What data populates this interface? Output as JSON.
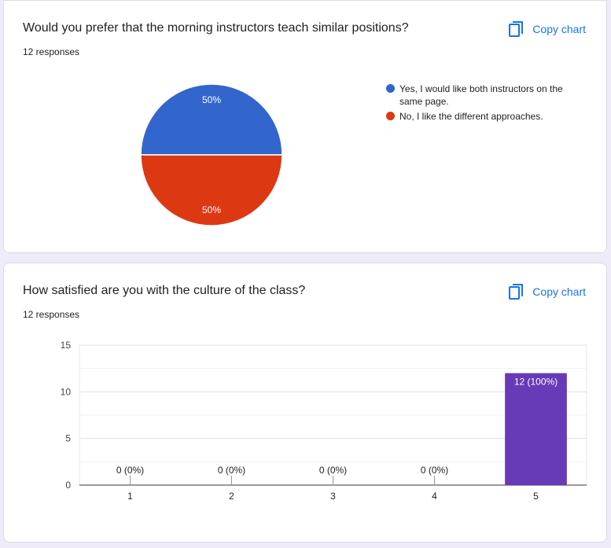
{
  "card1": {
    "title": "Would you prefer that the morning instructors teach similar positions?",
    "responses": "12 responses",
    "copy_label": "Copy chart"
  },
  "card2": {
    "title": "How satisfied are you with the culture of the class?",
    "responses": "12 responses",
    "copy_label": "Copy chart"
  },
  "chart_data": [
    {
      "type": "pie",
      "labels": [
        "Yes, I would like both instructors on the same page.",
        "No, I like the different approaches."
      ],
      "values": [
        50,
        50
      ],
      "slice_labels": [
        "50%",
        "50%"
      ],
      "colors": [
        "#3366cc",
        "#dc3912"
      ],
      "legend": "right"
    },
    {
      "type": "bar",
      "categories": [
        "1",
        "2",
        "3",
        "4",
        "5"
      ],
      "values": [
        0,
        0,
        0,
        0,
        12
      ],
      "data_labels": [
        "0 (0%)",
        "0 (0%)",
        "0 (0%)",
        "0 (0%)",
        "12 (100%)"
      ],
      "yticks": [
        "0",
        "5",
        "10",
        "15"
      ],
      "ylim": [
        0,
        15
      ],
      "grid": true,
      "color": "#673ab7"
    }
  ]
}
